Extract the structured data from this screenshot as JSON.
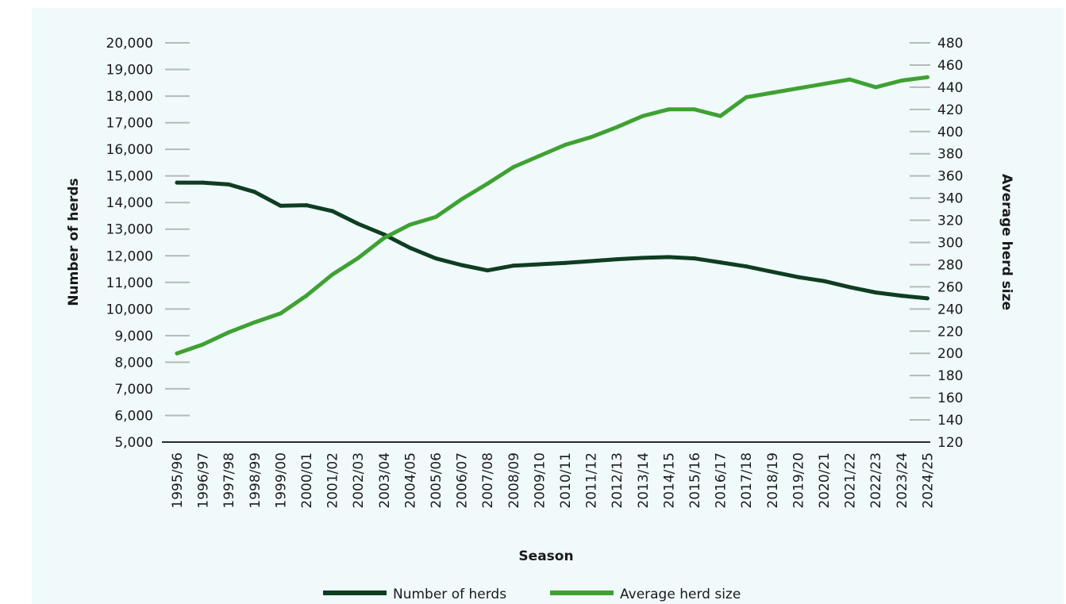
{
  "chart_data": {
    "type": "line",
    "title": "",
    "xlabel": "Season",
    "ylabel_left": "Number of herds",
    "ylabel_right": "Average herd size",
    "ylim_left": [
      5000,
      20000
    ],
    "ylim_right": [
      120,
      480
    ],
    "yticks_left": [
      "5,000",
      "6,000",
      "7,000",
      "8,000",
      "9,000",
      "10,000",
      "11,000",
      "12,000",
      "13,000",
      "14,000",
      "15,000",
      "16,000",
      "17,000",
      "18,000",
      "19,000",
      "20,000"
    ],
    "yticks_right": [
      "120",
      "140",
      "160",
      "180",
      "200",
      "220",
      "240",
      "260",
      "280",
      "300",
      "320",
      "340",
      "360",
      "380",
      "400",
      "420",
      "440",
      "460",
      "480"
    ],
    "categories": [
      "1995/96",
      "1996/97",
      "1997/98",
      "1998/99",
      "1999/00",
      "2000/01",
      "2001/02",
      "2002/03",
      "2003/04",
      "2004/05",
      "2005/06",
      "2006/07",
      "2007/08",
      "2008/09",
      "2009/10",
      "2010/11",
      "2011/12",
      "2012/13",
      "2013/14",
      "2014/15",
      "2015/16",
      "2016/17",
      "2017/18",
      "2018/19",
      "2019/20",
      "2020/21",
      "2021/22",
      "2022/23",
      "2023/24",
      "2024/25"
    ],
    "series": [
      {
        "name": "Number of herds",
        "axis": "left",
        "color": "#0f3d22",
        "values": [
          14750,
          14750,
          14680,
          14400,
          13880,
          13900,
          13680,
          13200,
          12800,
          12300,
          11900,
          11650,
          11450,
          11630,
          11680,
          11730,
          11800,
          11870,
          11920,
          11950,
          11900,
          11750,
          11600,
          11400,
          11200,
          11050,
          10820,
          10620,
          10500,
          10400
        ]
      },
      {
        "name": "Average herd size",
        "axis": "right",
        "color": "#3fa132",
        "values": [
          200,
          208,
          219,
          228,
          236,
          252,
          271,
          286,
          304,
          316,
          323,
          339,
          353,
          368,
          378,
          388,
          395,
          404,
          414,
          420,
          420,
          414,
          431,
          435,
          439,
          443,
          447,
          440,
          446,
          449
        ]
      }
    ],
    "grid": false,
    "legend_position": "bottom-center"
  }
}
